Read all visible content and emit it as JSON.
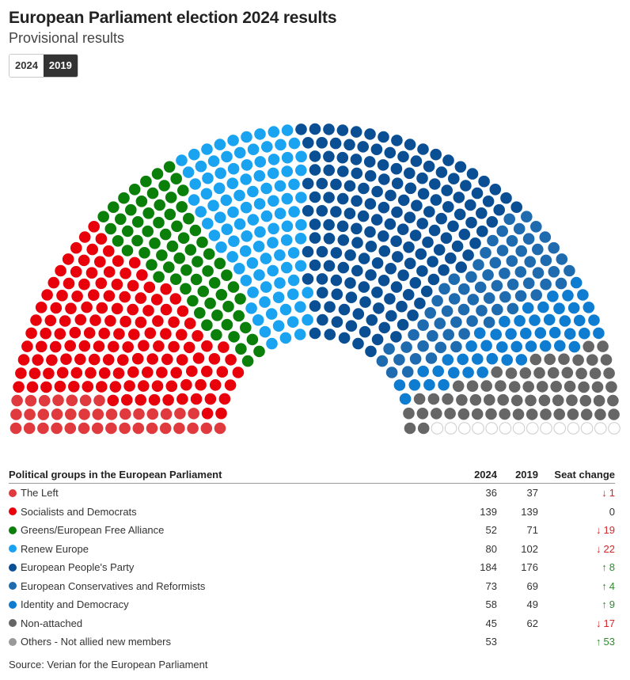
{
  "header": {
    "title": "European Parliament election 2024 results",
    "subtitle": "Provisional results"
  },
  "toggle": {
    "options": [
      "2024",
      "2019"
    ],
    "selected": "2019"
  },
  "table": {
    "headers": [
      "Political groups in the European Parliament",
      "2024",
      "2019",
      "Seat change"
    ]
  },
  "source": "Source: Verian for the European Parliament",
  "chart_data": {
    "type": "hemicycle",
    "year_shown": "2019",
    "groups": [
      {
        "name": "The Left",
        "color": "#e03a3e",
        "seats_2024": 36,
        "seats_2019": 37,
        "change": "1",
        "direction": "down"
      },
      {
        "name": "Socialists and Democrats",
        "color": "#e8000b",
        "seats_2024": 139,
        "seats_2019": 139,
        "change": "0",
        "direction": "same"
      },
      {
        "name": "Greens/European Free Alliance",
        "color": "#0a7f0a",
        "seats_2024": 52,
        "seats_2019": 71,
        "change": "19",
        "direction": "down"
      },
      {
        "name": "Renew Europe",
        "color": "#1aa3f0",
        "seats_2024": 80,
        "seats_2019": 102,
        "change": "22",
        "direction": "down"
      },
      {
        "name": "European People's Party",
        "color": "#0a4f94",
        "seats_2024": 184,
        "seats_2019": 176,
        "change": "8",
        "direction": "up"
      },
      {
        "name": "European Conservatives and Reformists",
        "color": "#1f6bb0",
        "seats_2024": 73,
        "seats_2019": 69,
        "change": "4",
        "direction": "up"
      },
      {
        "name": "Identity and Democracy",
        "color": "#0e7dd1",
        "seats_2024": 58,
        "seats_2019": 49,
        "change": "9",
        "direction": "up"
      },
      {
        "name": "Non-attached",
        "color": "#666666",
        "seats_2024": 45,
        "seats_2019": 62,
        "change": "17",
        "direction": "down"
      },
      {
        "name": "Others - Not allied new members",
        "color": "#999999",
        "seats_2024": 53,
        "seats_2019": null,
        "change": "53",
        "direction": "up"
      }
    ],
    "empty_seats_2019": 14
  }
}
